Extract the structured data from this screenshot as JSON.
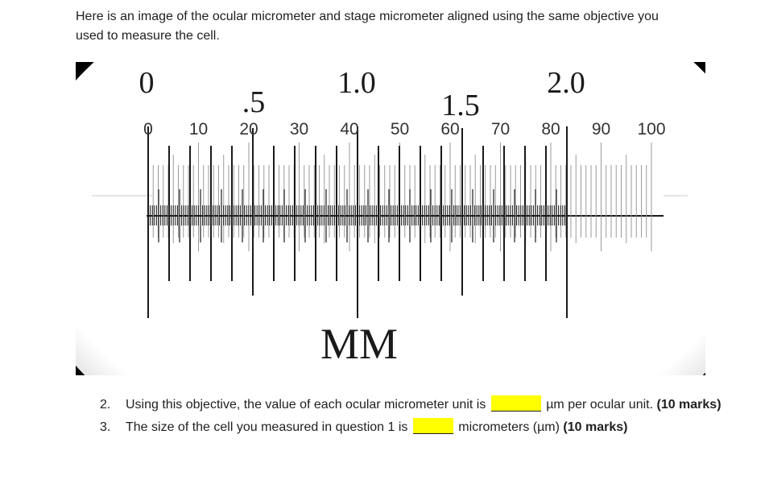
{
  "intro": {
    "text": "Here is an image of the ocular micrometer and stage micrometer aligned using the same objective you used to measure the cell."
  },
  "figure": {
    "stage_labels": [
      "0",
      ".5",
      "1.0",
      "1.5",
      "2.0"
    ],
    "ocular_labels": [
      "0",
      "10",
      "20",
      "30",
      "40",
      "50",
      "60",
      "70",
      "80",
      "90",
      "100"
    ],
    "unit_label": "MM",
    "colors": {
      "background": "#000000",
      "field": "#ffffff",
      "ticks": "#1a1a1a",
      "ocular_ticks": "#9a9a9a"
    }
  },
  "questions": [
    {
      "number": "2.",
      "before": "Using this objective, the value of each ocular micrometer unit is ",
      "after": " µm per ocular unit. ",
      "marks": "(10 marks)"
    },
    {
      "number": "3.",
      "before": "The size of the cell you measured in question 1 is ",
      "after": " micrometers (µm) ",
      "marks": "(10 marks)"
    }
  ]
}
